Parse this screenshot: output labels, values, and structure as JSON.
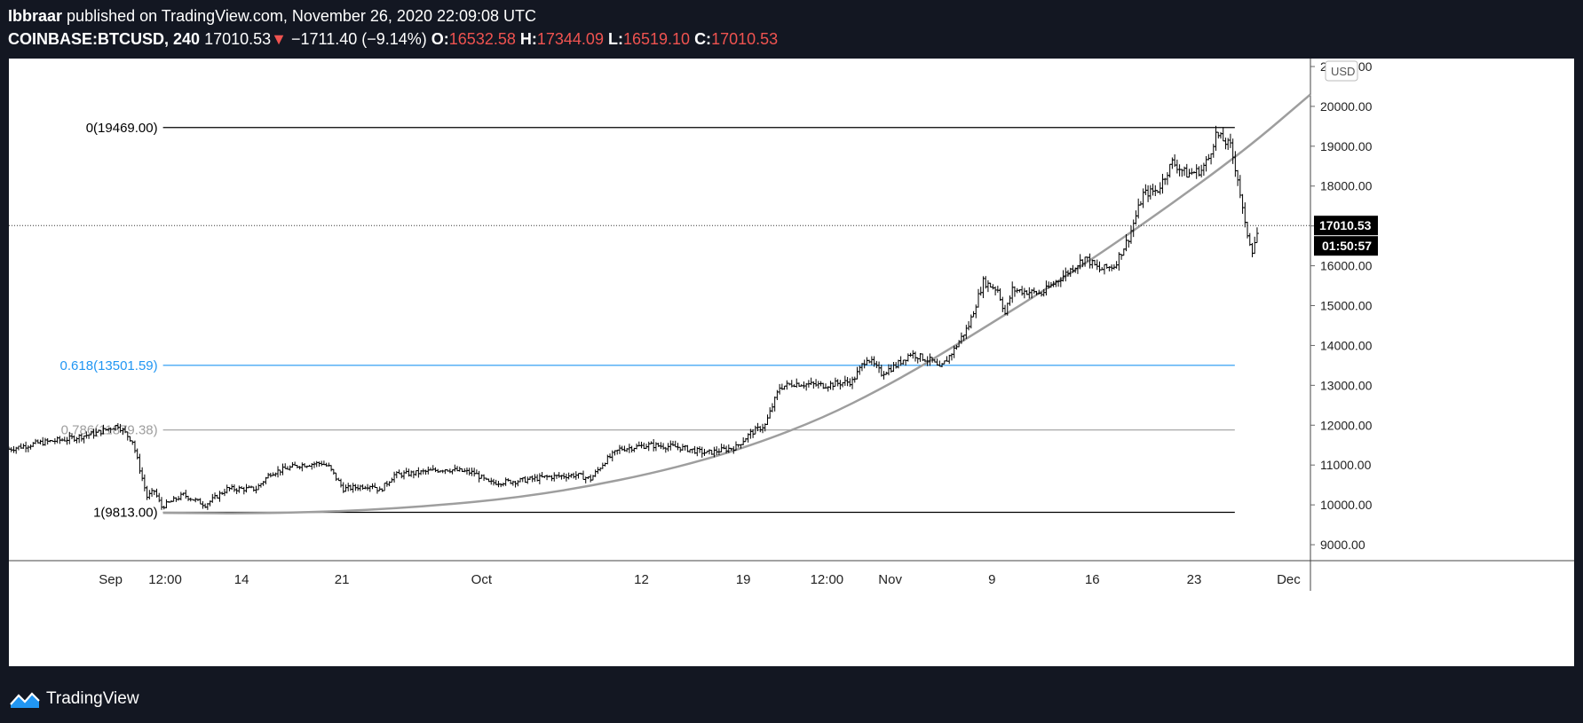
{
  "header": {
    "author": "Ibbraar",
    "published_text": "published on TradingView.com, November 26, 2020 22:09:08 UTC",
    "symbol": "COINBASE:BTCUSD, 240",
    "last": "17010.53",
    "change_arrow": "▼",
    "change": "−1711.40 (−9.14%)",
    "open_label": "O:",
    "open": "16532.58",
    "high_label": "H:",
    "high": "17344.09",
    "low_label": "L:",
    "low": "16519.10",
    "close_label": "C:",
    "close": "17010.53"
  },
  "footer": {
    "brand": "TradingView",
    "logo_icon": "tradingview-logo-icon"
  },
  "colors": {
    "background": "#131722",
    "negative": "#ef5350",
    "fib_blue": "#2196f3",
    "fib_gray": "#9e9e9e",
    "curve": "#9e9e9e",
    "price_tag": "#000000"
  },
  "chart_data": {
    "type": "candlestick",
    "currency_label": "USD",
    "y_ticks": [
      9000,
      10000,
      11000,
      12000,
      13000,
      14000,
      15000,
      16000,
      17000,
      18000,
      19000,
      20000,
      21000
    ],
    "y_tick_labels": [
      "9000.00",
      "10000.00",
      "11000.00",
      "12000.00",
      "13000.00",
      "14000.00",
      "15000.00",
      "16000.00",
      "17000.00",
      "18000.00",
      "19000.00",
      "20000.00",
      "21000.00"
    ],
    "ylim": [
      8600,
      21200
    ],
    "x_ticks": [
      {
        "label": "Sep",
        "day": 0
      },
      {
        "label": "12:00",
        "day": 3.75
      },
      {
        "label": "14",
        "day": 9
      },
      {
        "label": "21",
        "day": 15.9
      },
      {
        "label": "Oct",
        "day": 25.5
      },
      {
        "label": "12",
        "day": 36.5
      },
      {
        "label": "19",
        "day": 43.5
      },
      {
        "label": "12:00",
        "day": 49.25
      },
      {
        "label": "Nov",
        "day": 53.6
      },
      {
        "label": "9",
        "day": 60.6
      },
      {
        "label": "16",
        "day": 67.5
      },
      {
        "label": "23",
        "day": 74.5
      },
      {
        "label": "Dec",
        "day": 81
      }
    ],
    "xlim": [
      -7,
      82.5
    ],
    "price_series": [
      {
        "day": -7,
        "close": 11400
      },
      {
        "day": -5,
        "close": 11550
      },
      {
        "day": -3,
        "close": 11650
      },
      {
        "day": -1,
        "close": 11800
      },
      {
        "day": 0.5,
        "close": 12000
      },
      {
        "day": 1.5,
        "close": 11600
      },
      {
        "day": 2.5,
        "close": 10200
      },
      {
        "day": 3,
        "close": 10350
      },
      {
        "day": 3.5,
        "close": 9950
      },
      {
        "day": 5,
        "close": 10250
      },
      {
        "day": 6.5,
        "close": 10000
      },
      {
        "day": 8,
        "close": 10400
      },
      {
        "day": 10,
        "close": 10400
      },
      {
        "day": 11,
        "close": 10800
      },
      {
        "day": 13,
        "close": 11000
      },
      {
        "day": 14.5,
        "close": 11050
      },
      {
        "day": 15,
        "close": 10950
      },
      {
        "day": 16,
        "close": 10400
      },
      {
        "day": 18,
        "close": 10500
      },
      {
        "day": 18.5,
        "close": 10350
      },
      {
        "day": 19.5,
        "close": 10750
      },
      {
        "day": 21,
        "close": 10800
      },
      {
        "day": 23,
        "close": 10900
      },
      {
        "day": 25,
        "close": 10800
      },
      {
        "day": 26,
        "close": 10550
      },
      {
        "day": 28,
        "close": 10600
      },
      {
        "day": 30,
        "close": 10700
      },
      {
        "day": 32,
        "close": 10750
      },
      {
        "day": 33,
        "close": 10650
      },
      {
        "day": 34,
        "close": 11100
      },
      {
        "day": 35,
        "close": 11400
      },
      {
        "day": 37,
        "close": 11500
      },
      {
        "day": 39,
        "close": 11450
      },
      {
        "day": 41,
        "close": 11300
      },
      {
        "day": 43,
        "close": 11450
      },
      {
        "day": 44,
        "close": 11800
      },
      {
        "day": 45,
        "close": 12000
      },
      {
        "day": 46,
        "close": 12950
      },
      {
        "day": 47,
        "close": 13050
      },
      {
        "day": 49,
        "close": 13000
      },
      {
        "day": 51,
        "close": 13100
      },
      {
        "day": 52,
        "close": 13700
      },
      {
        "day": 53,
        "close": 13300
      },
      {
        "day": 54,
        "close": 13500
      },
      {
        "day": 55,
        "close": 13800
      },
      {
        "day": 56.5,
        "close": 13600
      },
      {
        "day": 57,
        "close": 13400
      },
      {
        "day": 58,
        "close": 13900
      },
      {
        "day": 59,
        "close": 14500
      },
      {
        "day": 60,
        "close": 15600
      },
      {
        "day": 61,
        "close": 15400
      },
      {
        "day": 61.5,
        "close": 14800
      },
      {
        "day": 62,
        "close": 15400
      },
      {
        "day": 64,
        "close": 15300
      },
      {
        "day": 66,
        "close": 15900
      },
      {
        "day": 67,
        "close": 16200
      },
      {
        "day": 68,
        "close": 15900
      },
      {
        "day": 69,
        "close": 16000
      },
      {
        "day": 70,
        "close": 16700
      },
      {
        "day": 71,
        "close": 17800
      },
      {
        "day": 72,
        "close": 17900
      },
      {
        "day": 73,
        "close": 18600
      },
      {
        "day": 74,
        "close": 18300
      },
      {
        "day": 75,
        "close": 18400
      },
      {
        "day": 75.5,
        "close": 18700
      },
      {
        "day": 76,
        "close": 19300
      },
      {
        "day": 77,
        "close": 19000
      },
      {
        "day": 77.5,
        "close": 18200
      },
      {
        "day": 78,
        "close": 17000
      },
      {
        "day": 78.5,
        "close": 16400
      },
      {
        "day": 79,
        "close": 17010
      }
    ],
    "fib_levels": [
      {
        "label": "0(19469.00)",
        "price": 19469,
        "color": "#000000"
      },
      {
        "label": "0.618(13501.59)",
        "price": 13501.59,
        "color": "#2196f3"
      },
      {
        "label": "0.786(11879.38)",
        "price": 11879.38,
        "color": "#9e9e9e"
      },
      {
        "label": "1(9813.00)",
        "price": 9813,
        "color": "#000000"
      }
    ],
    "fib_start_day": 3.6,
    "fib_end_day": 77.3,
    "curve_points": [
      {
        "day": 3.6,
        "price": 9800
      },
      {
        "day": 11,
        "price": 9780
      },
      {
        "day": 20,
        "price": 9900
      },
      {
        "day": 30,
        "price": 10250
      },
      {
        "day": 40,
        "price": 11000
      },
      {
        "day": 48,
        "price": 12000
      },
      {
        "day": 54,
        "price": 13100
      },
      {
        "day": 59,
        "price": 14200
      },
      {
        "day": 66,
        "price": 15800
      },
      {
        "day": 72,
        "price": 17300
      },
      {
        "day": 78,
        "price": 18900
      },
      {
        "day": 82.5,
        "price": 20300
      }
    ],
    "last_price": 17010.53,
    "last_price_label": "17010.53",
    "countdown": "01:50:57"
  }
}
